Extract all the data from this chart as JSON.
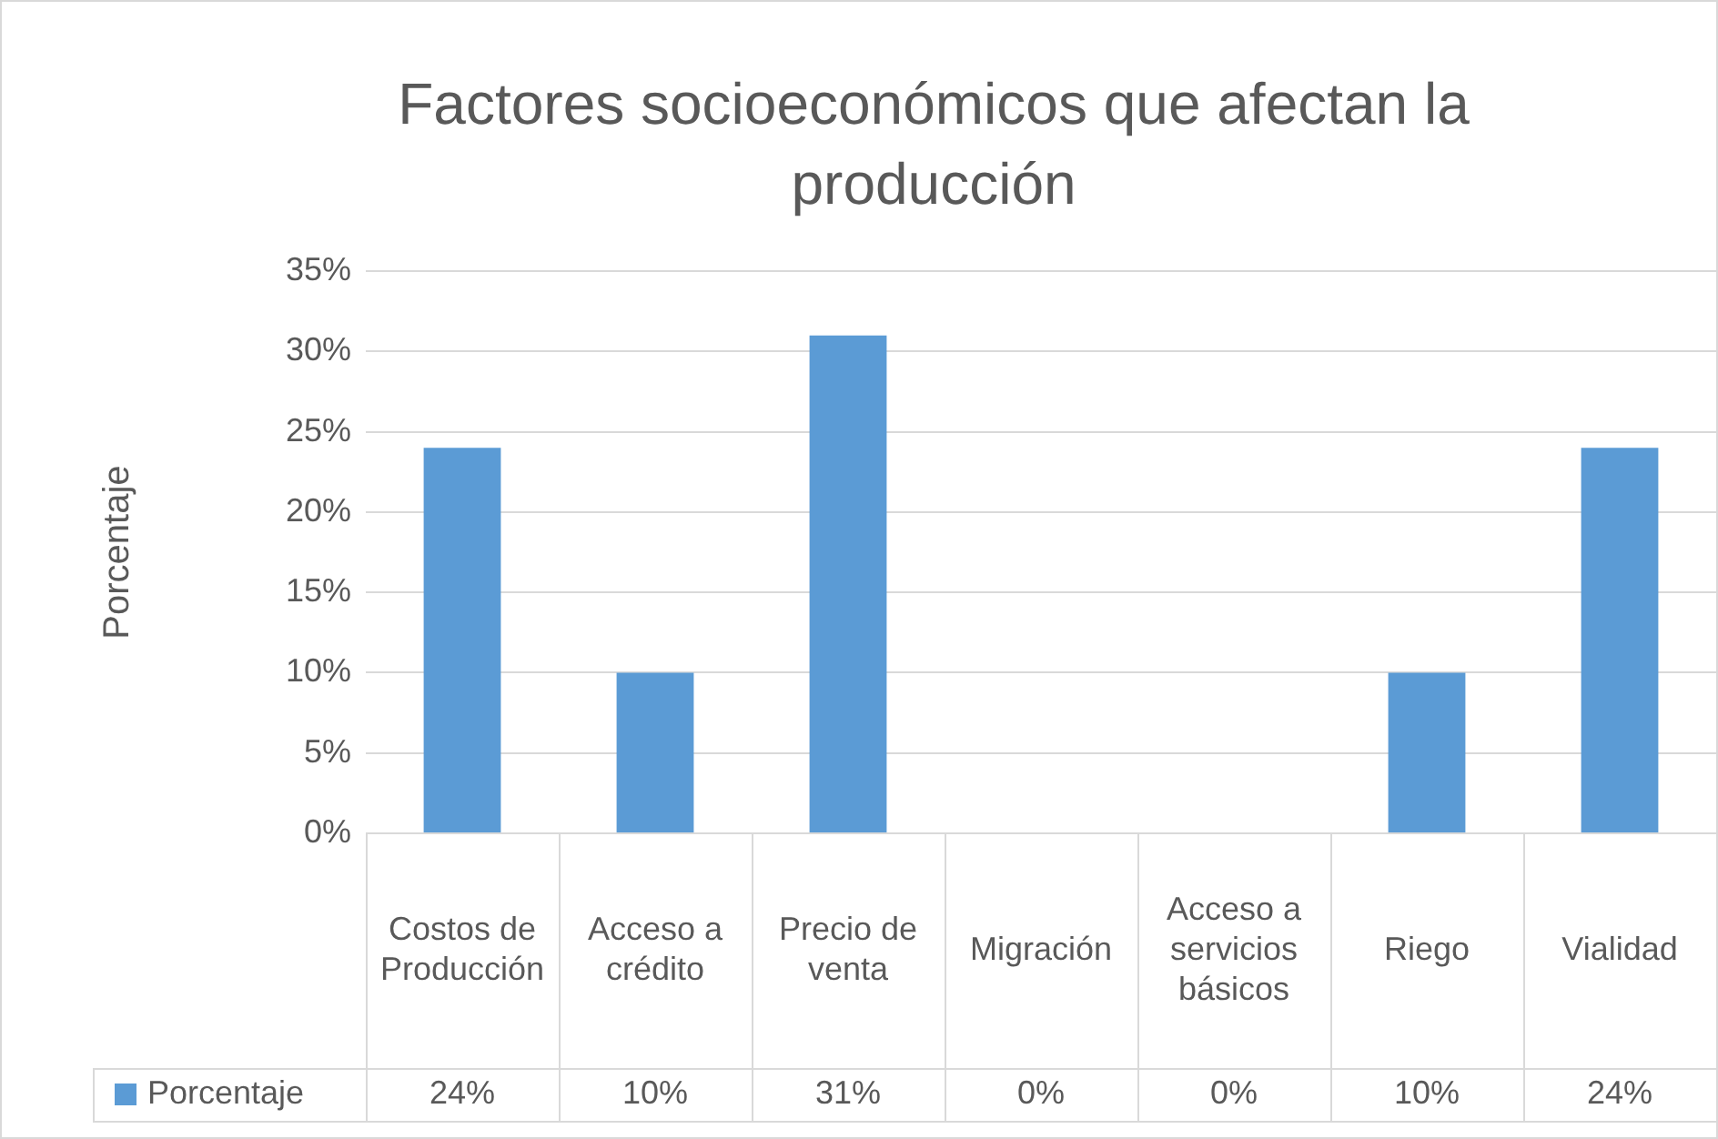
{
  "chart_data": {
    "type": "bar",
    "title": "Factores socioeconómicos que afectan la producción",
    "ylabel": "Porcentaje",
    "categories": [
      "Costos de Producción",
      "Acceso a crédito",
      "Precio de venta",
      "Migración",
      "Acceso a servicios básicos",
      "Riego",
      "Vialidad"
    ],
    "series": [
      {
        "name": "Porcentaje",
        "color": "#5b9bd5",
        "values": [
          24,
          10,
          31,
          0,
          0,
          10,
          24
        ],
        "value_labels": [
          "24%",
          "10%",
          "31%",
          "0%",
          "0%",
          "10%",
          "24%"
        ]
      }
    ],
    "ylim": [
      0,
      35
    ],
    "yticks": [
      {
        "value": 0,
        "label": "0%"
      },
      {
        "value": 5,
        "label": "5%"
      },
      {
        "value": 10,
        "label": "10%"
      },
      {
        "value": 15,
        "label": "15%"
      },
      {
        "value": 20,
        "label": "20%"
      },
      {
        "value": 25,
        "label": "25%"
      },
      {
        "value": 30,
        "label": "30%"
      },
      {
        "value": 35,
        "label": "35%"
      }
    ],
    "grid": "y",
    "legend": "bottom"
  }
}
